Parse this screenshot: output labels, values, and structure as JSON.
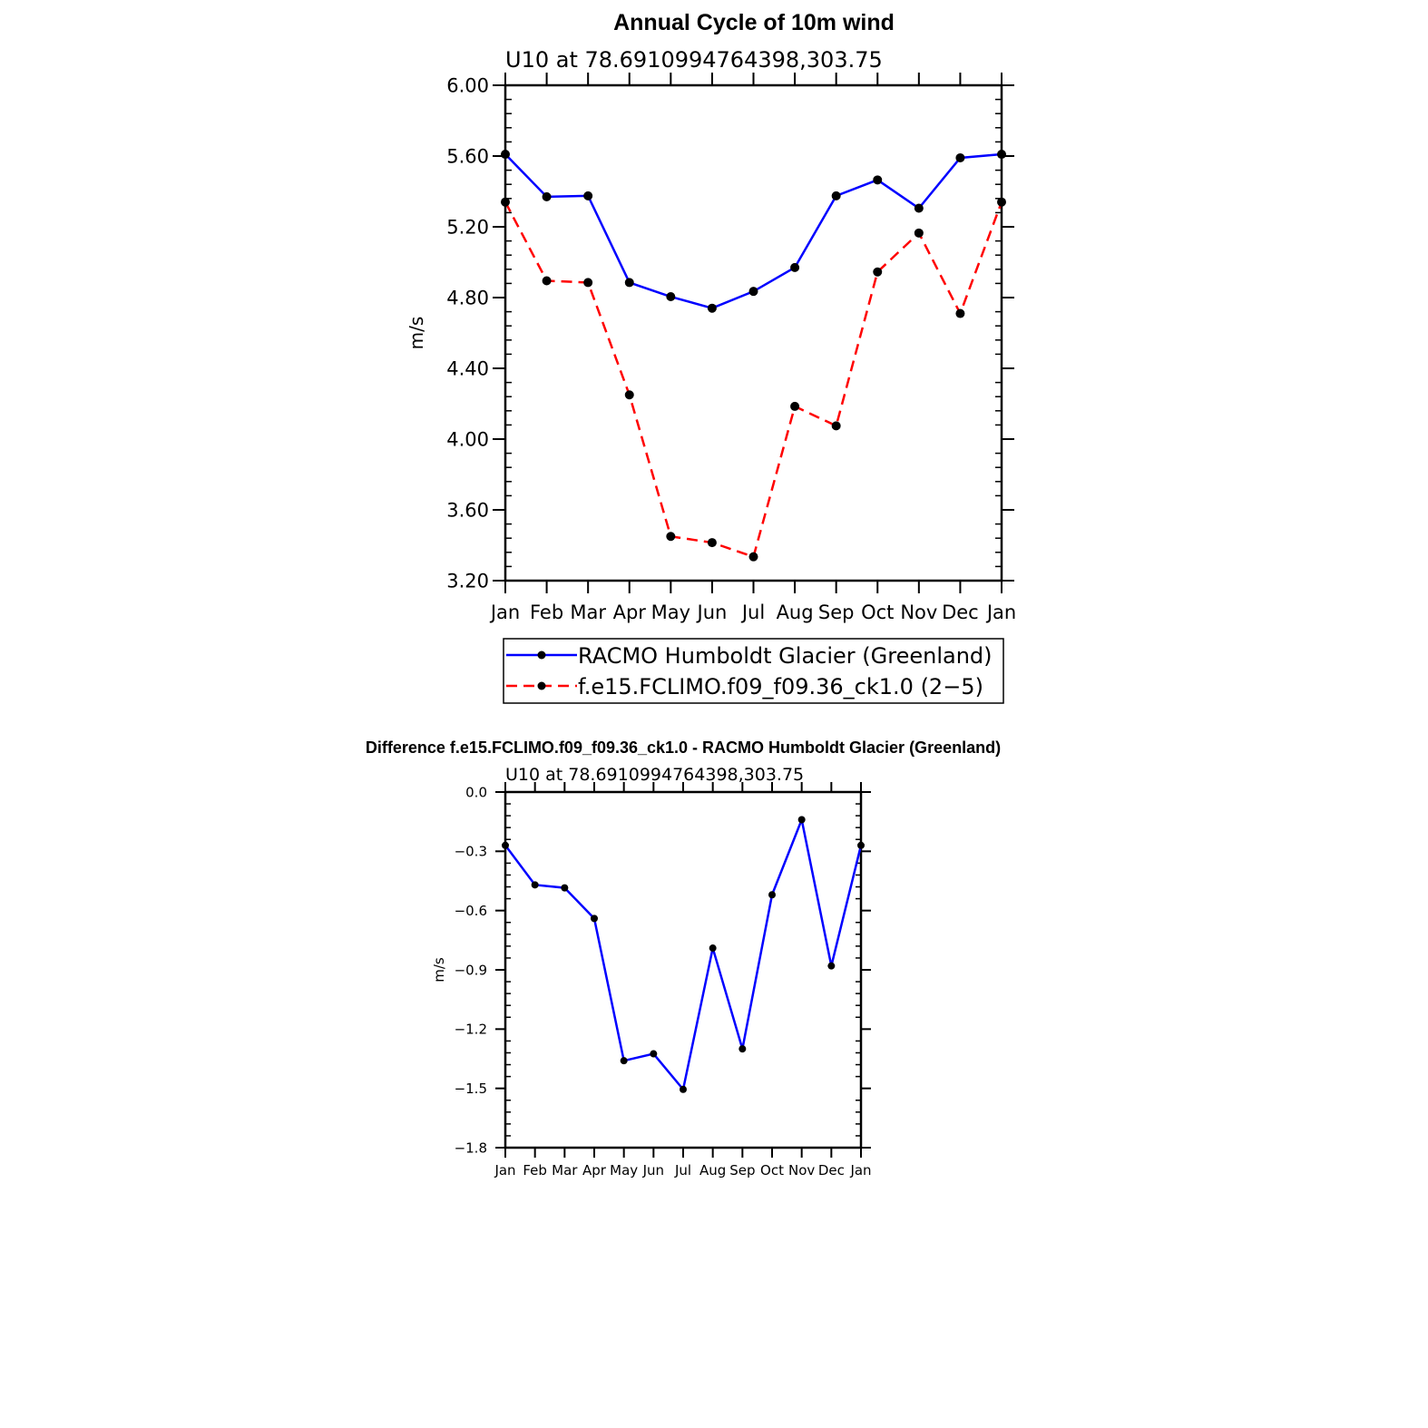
{
  "chart_data": [
    {
      "type": "line",
      "title": "Annual Cycle of 10m wind",
      "subtitle": "U10  at  78.6910994764398,303.75",
      "ylabel": "m/s",
      "xlabel": "",
      "categories": [
        "Jan",
        "Feb",
        "Mar",
        "Apr",
        "May",
        "Jun",
        "Jul",
        "Aug",
        "Sep",
        "Oct",
        "Nov",
        "Dec",
        "Jan"
      ],
      "ylim": [
        3.2,
        6.0
      ],
      "yticks": [
        "3.20",
        "3.60",
        "4.00",
        "4.40",
        "4.80",
        "5.20",
        "5.60",
        "6.00"
      ],
      "series": [
        {
          "name": "RACMO Humboldt Glacier (Greenland)",
          "color": "#0000ff",
          "dash": "solid",
          "values": [
            5.61,
            5.37,
            5.375,
            4.885,
            4.805,
            4.74,
            4.835,
            4.97,
            5.375,
            5.465,
            5.305,
            5.59,
            5.61
          ]
        },
        {
          "name": "f.e15.FCLIMO.f09_f09.36_ck1.0 (2−5)",
          "color": "#ff0000",
          "dash": "dashed",
          "values": [
            5.34,
            4.895,
            4.885,
            4.25,
            3.45,
            3.415,
            3.335,
            4.185,
            4.075,
            4.945,
            5.165,
            4.71,
            5.34
          ]
        }
      ],
      "legend": "bottom"
    },
    {
      "type": "line",
      "title": "Difference f.e15.FCLIMO.f09_f09.36_ck1.0 - RACMO Humboldt Glacier (Greenland)",
      "subtitle": "U10  at  78.6910994764398,303.75",
      "ylabel": "m/s",
      "xlabel": "",
      "categories": [
        "Jan",
        "Feb",
        "Mar",
        "Apr",
        "May",
        "Jun",
        "Jul",
        "Aug",
        "Sep",
        "Oct",
        "Nov",
        "Dec",
        "Jan"
      ],
      "ylim": [
        -1.8,
        0.0
      ],
      "yticks": [
        "−1.8",
        "−1.5",
        "−1.2",
        "−0.9",
        "−0.6",
        "−0.3",
        "0.0"
      ],
      "series": [
        {
          "name": "Difference",
          "color": "#0000ff",
          "dash": "solid",
          "values": [
            -0.27,
            -0.47,
            -0.485,
            -0.64,
            -1.36,
            -1.325,
            -1.505,
            -0.79,
            -1.3,
            -0.52,
            -0.14,
            -0.88,
            -0.27
          ]
        }
      ]
    }
  ]
}
